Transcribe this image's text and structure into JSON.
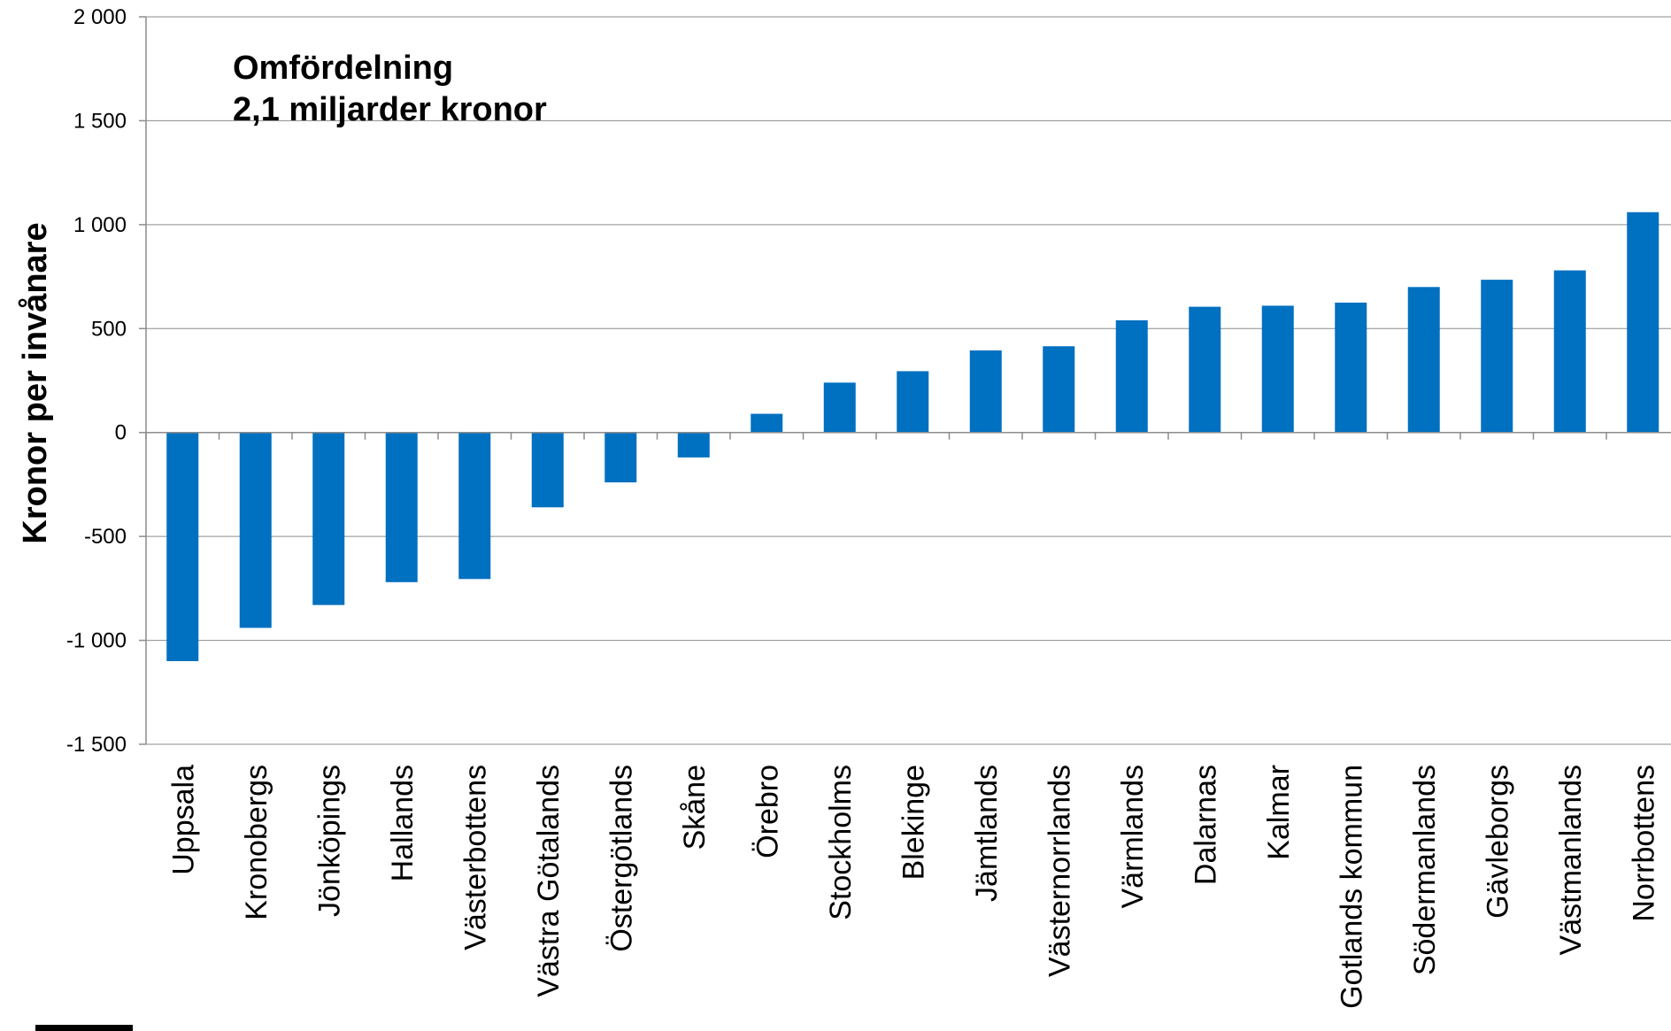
{
  "chart_data": {
    "type": "bar",
    "ylabel": "Kronor per invånare",
    "annotation": [
      "Omfördelning",
      "2,1 miljarder kronor"
    ],
    "ylim": [
      -1500,
      2000
    ],
    "yticks": [
      2000,
      1500,
      1000,
      500,
      0,
      -500,
      -1000,
      -1500
    ],
    "ytick_labels": [
      "2 000",
      "1 500",
      "1 000",
      "500",
      "0",
      "-500",
      "-1 000",
      "-1 500"
    ],
    "grid": true,
    "bar_color": "#0070C0",
    "categories": [
      "Uppsala",
      "Kronobergs",
      "Jönköpings",
      "Hallands",
      "Västerbottens",
      "Västra Götalands",
      "Östergötlands",
      "Skåne",
      "Örebro",
      "Stockholms",
      "Blekinge",
      "Jämtlands",
      "Västernorrlands",
      "Värmlands",
      "Dalarnas",
      "Kalmar",
      "Gotlands kommun",
      "Södermanlands",
      "Gävleborgs",
      "Västmanlands",
      "Norrbottens"
    ],
    "values": [
      -1100,
      -940,
      -830,
      -720,
      -705,
      -360,
      -240,
      -120,
      90,
      240,
      295,
      395,
      415,
      540,
      605,
      610,
      625,
      700,
      735,
      780,
      1060
    ]
  }
}
